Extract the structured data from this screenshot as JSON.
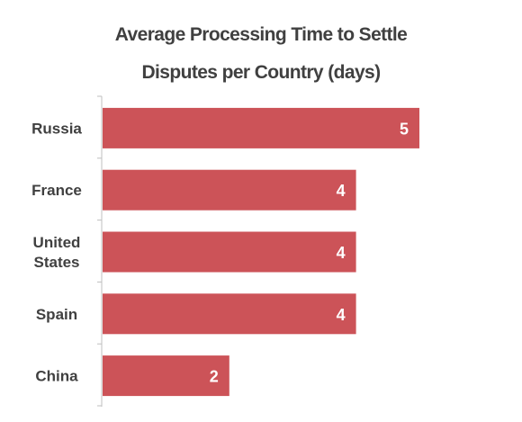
{
  "chart_data": {
    "type": "bar",
    "orientation": "horizontal",
    "title": "Average Processing Time to Settle Disputes per Country (days)",
    "title_lines": [
      "Average Processing Time to Settle",
      "Disputes per Country (days)"
    ],
    "categories": [
      [
        "Russia"
      ],
      [
        "France"
      ],
      [
        "United",
        "States"
      ],
      [
        "Spain"
      ],
      [
        "China"
      ]
    ],
    "values": [
      5,
      4,
      4,
      4,
      2
    ],
    "value_labels": [
      "5",
      "4",
      "4",
      "4",
      "2"
    ],
    "xlim": [
      0,
      5
    ],
    "grid": false,
    "legend": "none",
    "bar_color": "#cc5358",
    "label_color": "#404040",
    "axis_color": "#bfbfbf"
  }
}
